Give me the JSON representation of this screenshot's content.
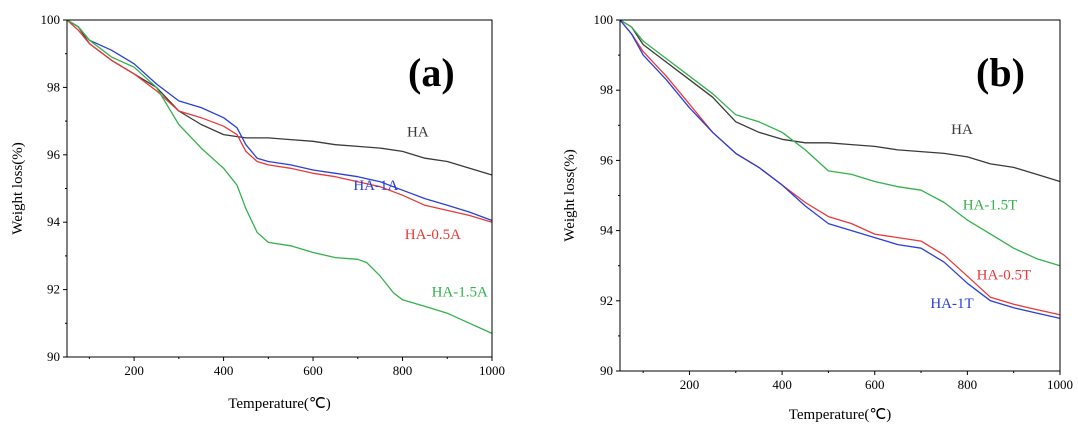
{
  "chart_data": [
    {
      "type": "line",
      "panel_label": "(a)",
      "xlabel": "Temperature(℃)",
      "ylabel": "Weight loss(%)",
      "xlim": [
        50,
        1000
      ],
      "ylim": [
        90,
        100
      ],
      "x_ticks": [
        200,
        400,
        600,
        800,
        1000
      ],
      "y_ticks": [
        90,
        92,
        94,
        96,
        98,
        100
      ],
      "grid": false,
      "series": [
        {
          "name": "HA",
          "color": "#3a3a3a",
          "x": [
            50,
            75,
            100,
            150,
            200,
            250,
            300,
            350,
            400,
            450,
            500,
            550,
            600,
            650,
            700,
            750,
            800,
            850,
            900,
            950,
            1000
          ],
          "y": [
            100,
            99.8,
            99.3,
            98.8,
            98.4,
            98.0,
            97.3,
            96.9,
            96.6,
            96.5,
            96.5,
            96.45,
            96.4,
            96.3,
            96.25,
            96.2,
            96.1,
            95.9,
            95.8,
            95.6,
            95.4
          ]
        },
        {
          "name": "HA-1A",
          "color": "#2a3fd6",
          "x": [
            50,
            75,
            100,
            150,
            200,
            250,
            300,
            350,
            400,
            430,
            450,
            475,
            500,
            550,
            600,
            650,
            700,
            750,
            800,
            850,
            900,
            950,
            1000
          ],
          "y": [
            100,
            99.8,
            99.4,
            99.1,
            98.7,
            98.1,
            97.6,
            97.4,
            97.1,
            96.8,
            96.3,
            95.9,
            95.8,
            95.7,
            95.55,
            95.45,
            95.35,
            95.2,
            94.95,
            94.7,
            94.5,
            94.3,
            94.05
          ]
        },
        {
          "name": "HA-0.5A",
          "color": "#e83a3a",
          "x": [
            50,
            75,
            100,
            150,
            200,
            250,
            300,
            350,
            400,
            430,
            450,
            475,
            500,
            550,
            600,
            650,
            700,
            750,
            800,
            850,
            900,
            950,
            1000
          ],
          "y": [
            100,
            99.7,
            99.3,
            98.8,
            98.4,
            97.9,
            97.3,
            97.1,
            96.85,
            96.6,
            96.1,
            95.8,
            95.7,
            95.6,
            95.45,
            95.35,
            95.2,
            95.05,
            94.8,
            94.5,
            94.35,
            94.2,
            94.0
          ]
        },
        {
          "name": "HA-1.5A",
          "color": "#33b24a",
          "x": [
            50,
            75,
            100,
            150,
            200,
            250,
            300,
            350,
            400,
            430,
            450,
            475,
            500,
            550,
            600,
            650,
            700,
            720,
            750,
            780,
            800,
            850,
            900,
            950,
            1000
          ],
          "y": [
            100,
            99.8,
            99.4,
            98.9,
            98.6,
            98.0,
            96.9,
            96.2,
            95.6,
            95.1,
            94.4,
            93.7,
            93.4,
            93.3,
            93.1,
            92.95,
            92.9,
            92.8,
            92.4,
            91.9,
            91.7,
            91.5,
            91.3,
            91.0,
            90.7
          ]
        }
      ],
      "annotations": [
        {
          "text": "HA",
          "color": "#3a3a3a",
          "x": 810,
          "y": 96.55
        },
        {
          "text": "HA-1A",
          "color": "#2a3fd6",
          "x": 690,
          "y": 94.95
        },
        {
          "text": "HA-0.5A",
          "color": "#e83a3a",
          "x": 805,
          "y": 93.5
        },
        {
          "text": "HA-1.5A",
          "color": "#33b24a",
          "x": 865,
          "y": 91.8
        }
      ]
    },
    {
      "type": "line",
      "panel_label": "(b)",
      "xlabel": "Temperature(℃)",
      "ylabel": "Weight loss(%)",
      "xlim": [
        50,
        1000
      ],
      "ylim": [
        90,
        100
      ],
      "x_ticks": [
        200,
        400,
        600,
        800,
        1000
      ],
      "y_ticks": [
        90,
        92,
        94,
        96,
        98,
        100
      ],
      "grid": false,
      "series": [
        {
          "name": "HA",
          "color": "#3a3a3a",
          "x": [
            50,
            75,
            100,
            150,
            200,
            250,
            300,
            350,
            400,
            450,
            500,
            550,
            600,
            650,
            700,
            750,
            800,
            850,
            900,
            950,
            1000
          ],
          "y": [
            100,
            99.8,
            99.3,
            98.8,
            98.3,
            97.8,
            97.1,
            96.8,
            96.6,
            96.5,
            96.5,
            96.45,
            96.4,
            96.3,
            96.25,
            96.2,
            96.1,
            95.9,
            95.8,
            95.6,
            95.4
          ]
        },
        {
          "name": "HA-1.5T",
          "color": "#33b24a",
          "x": [
            50,
            75,
            100,
            150,
            200,
            250,
            300,
            350,
            400,
            450,
            500,
            550,
            600,
            650,
            700,
            750,
            800,
            850,
            900,
            950,
            1000
          ],
          "y": [
            100,
            99.8,
            99.4,
            98.9,
            98.4,
            97.9,
            97.3,
            97.1,
            96.8,
            96.3,
            95.7,
            95.6,
            95.4,
            95.25,
            95.15,
            94.8,
            94.3,
            93.9,
            93.5,
            93.2,
            93.0
          ]
        },
        {
          "name": "HA-0.5T",
          "color": "#e83a3a",
          "x": [
            50,
            75,
            100,
            150,
            200,
            250,
            300,
            350,
            400,
            450,
            500,
            550,
            600,
            650,
            700,
            750,
            800,
            850,
            900,
            950,
            1000
          ],
          "y": [
            100,
            99.6,
            99.1,
            98.4,
            97.6,
            96.8,
            96.2,
            95.8,
            95.3,
            94.8,
            94.4,
            94.2,
            93.9,
            93.8,
            93.7,
            93.3,
            92.7,
            92.1,
            91.9,
            91.75,
            91.6
          ]
        },
        {
          "name": "HA-1T",
          "color": "#2a3fd6",
          "x": [
            50,
            75,
            100,
            150,
            200,
            250,
            300,
            350,
            400,
            450,
            500,
            550,
            600,
            650,
            700,
            750,
            800,
            850,
            900,
            950,
            1000
          ],
          "y": [
            100,
            99.6,
            99.0,
            98.3,
            97.5,
            96.8,
            96.2,
            95.8,
            95.3,
            94.7,
            94.2,
            94.0,
            93.8,
            93.6,
            93.5,
            93.1,
            92.5,
            92.0,
            91.8,
            91.65,
            91.5
          ]
        }
      ],
      "annotations": [
        {
          "text": "HA",
          "color": "#3a3a3a",
          "x": 765,
          "y": 96.75
        },
        {
          "text": "HA-1.5T",
          "color": "#33b24a",
          "x": 790,
          "y": 94.6
        },
        {
          "text": "HA-0.5T",
          "color": "#e83a3a",
          "x": 820,
          "y": 92.6
        },
        {
          "text": "HA-1T",
          "color": "#2a3fd6",
          "x": 720,
          "y": 91.8
        }
      ]
    }
  ]
}
